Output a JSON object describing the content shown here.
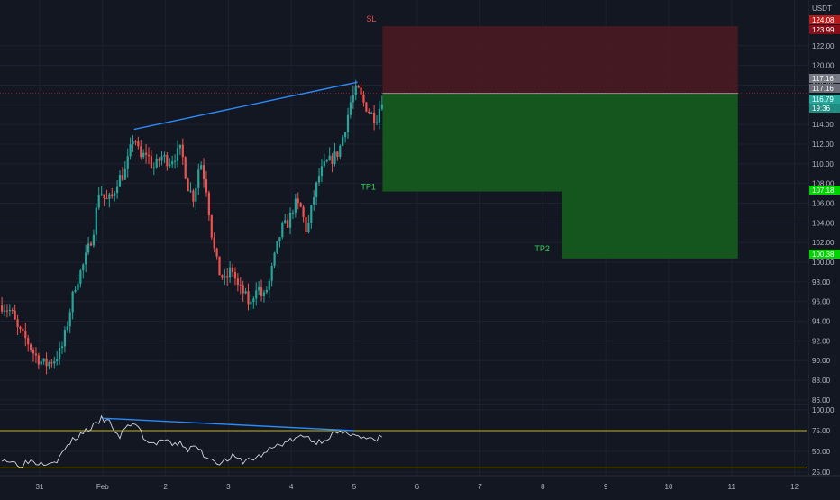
{
  "chart_data": {
    "type": "candlestick",
    "currency_label": "USDT",
    "y_ticks": [
      "122.00",
      "120.00",
      "118.00",
      "116.00",
      "114.00",
      "112.00",
      "110.00",
      "108.00",
      "106.00",
      "104.00",
      "102.00",
      "100.00",
      "98.00",
      "96.00",
      "94.00",
      "92.00",
      "90.00",
      "88.00",
      "86.00"
    ],
    "price_tags": [
      {
        "text": "124.08",
        "value": 124.08,
        "color": "#b71c1c"
      },
      {
        "text": "123.99",
        "value": 123.99,
        "color": "#880e1a"
      },
      {
        "text": "117.16",
        "value": 117.16,
        "color": "#787b86"
      },
      {
        "text": "117.16",
        "value": 117.16,
        "color": "#6a6d78"
      },
      {
        "text": "116.79",
        "value": 116.79,
        "color": "#26a69a"
      },
      {
        "text": "19:36",
        "value": 116.79,
        "color": "#1e8c81"
      },
      {
        "text": "107.18",
        "value": 107.18,
        "color": "#00d400"
      },
      {
        "text": "100.38",
        "value": 100.38,
        "color": "#00d400"
      }
    ],
    "x_ticks": [
      {
        "label": "31",
        "day": 0
      },
      {
        "label": "Feb",
        "day": 1
      },
      {
        "label": "2",
        "day": 2
      },
      {
        "label": "3",
        "day": 3
      },
      {
        "label": "4",
        "day": 4
      },
      {
        "label": "5",
        "day": 5
      },
      {
        "label": "6",
        "day": 6
      },
      {
        "label": "7",
        "day": 7
      },
      {
        "label": "8",
        "day": 8
      },
      {
        "label": "9",
        "day": 9
      },
      {
        "label": "10",
        "day": 10
      },
      {
        "label": "11",
        "day": 11
      },
      {
        "label": "12",
        "day": 12
      }
    ],
    "price_path": [
      [
        -0.6,
        95.6
      ],
      [
        -0.45,
        95.0
      ],
      [
        -0.35,
        93.2
      ],
      [
        -0.2,
        92.0
      ],
      [
        -0.1,
        90.8
      ],
      [
        0.0,
        90.0
      ],
      [
        0.1,
        89.6
      ],
      [
        0.25,
        90.2
      ],
      [
        0.35,
        91.2
      ],
      [
        0.45,
        94.0
      ],
      [
        0.55,
        97.4
      ],
      [
        0.7,
        99.8
      ],
      [
        0.85,
        103.0
      ],
      [
        0.95,
        107.5
      ],
      [
        1.05,
        106.2
      ],
      [
        1.15,
        106.6
      ],
      [
        1.25,
        108.5
      ],
      [
        1.35,
        109.0
      ],
      [
        1.5,
        113.0
      ],
      [
        1.6,
        110.5
      ],
      [
        1.7,
        111.2
      ],
      [
        1.8,
        109.5
      ],
      [
        1.95,
        110.8
      ],
      [
        2.05,
        110.2
      ],
      [
        2.15,
        110.8
      ],
      [
        2.25,
        111.5
      ],
      [
        2.35,
        107.8
      ],
      [
        2.45,
        106.5
      ],
      [
        2.55,
        110.5
      ],
      [
        2.65,
        107.5
      ],
      [
        2.75,
        102.0
      ],
      [
        2.85,
        99.0
      ],
      [
        2.95,
        98.0
      ],
      [
        3.05,
        99.5
      ],
      [
        3.15,
        97.5
      ],
      [
        3.25,
        96.8
      ],
      [
        3.35,
        95.5
      ],
      [
        3.45,
        97.8
      ],
      [
        3.55,
        96.2
      ],
      [
        3.65,
        98.0
      ],
      [
        3.75,
        101.0
      ],
      [
        3.85,
        103.5
      ],
      [
        3.95,
        104.0
      ],
      [
        4.05,
        106.0
      ],
      [
        4.15,
        105.5
      ],
      [
        4.25,
        103.0
      ],
      [
        4.35,
        106.5
      ],
      [
        4.45,
        109.0
      ],
      [
        4.55,
        110.0
      ],
      [
        4.65,
        110.5
      ],
      [
        4.75,
        111.2
      ],
      [
        4.85,
        113.5
      ],
      [
        4.95,
        116.5
      ],
      [
        5.05,
        117.6
      ],
      [
        5.15,
        116.2
      ],
      [
        5.25,
        115.2
      ],
      [
        5.35,
        114.6
      ],
      [
        5.45,
        116.8
      ]
    ],
    "trendline_price": {
      "start": {
        "day": 1.5,
        "price": 113.5
      },
      "end": {
        "day": 5.05,
        "price": 118.3
      },
      "color": "#2b8af7"
    },
    "rsi": {
      "ticks": [
        "100.00",
        "75.00",
        "50.00",
        "25.00"
      ],
      "upper_band": 75,
      "lower_band": 30,
      "band_color": "#c8b400",
      "path": [
        [
          -0.6,
          42
        ],
        [
          -0.45,
          37
        ],
        [
          -0.3,
          34
        ],
        [
          -0.15,
          39
        ],
        [
          0.0,
          36
        ],
        [
          0.15,
          38
        ],
        [
          0.3,
          40
        ],
        [
          0.45,
          58
        ],
        [
          0.6,
          68
        ],
        [
          0.75,
          76
        ],
        [
          0.9,
          82
        ],
        [
          1.0,
          90
        ],
        [
          1.15,
          82
        ],
        [
          1.25,
          65
        ],
        [
          1.35,
          76
        ],
        [
          1.5,
          86
        ],
        [
          1.6,
          74
        ],
        [
          1.7,
          62
        ],
        [
          1.8,
          58
        ],
        [
          1.95,
          64
        ],
        [
          2.1,
          57
        ],
        [
          2.25,
          60
        ],
        [
          2.35,
          52
        ],
        [
          2.5,
          56
        ],
        [
          2.6,
          46
        ],
        [
          2.75,
          40
        ],
        [
          2.9,
          36
        ],
        [
          3.05,
          44
        ],
        [
          3.2,
          38
        ],
        [
          3.35,
          40
        ],
        [
          3.5,
          44
        ],
        [
          3.65,
          52
        ],
        [
          3.8,
          58
        ],
        [
          3.95,
          62
        ],
        [
          4.1,
          66
        ],
        [
          4.25,
          68
        ],
        [
          4.4,
          60
        ],
        [
          4.55,
          66
        ],
        [
          4.7,
          72
        ],
        [
          4.85,
          70
        ],
        [
          5.0,
          74
        ],
        [
          5.1,
          66
        ],
        [
          5.25,
          64
        ],
        [
          5.35,
          62
        ],
        [
          5.45,
          70
        ]
      ],
      "trendline": {
        "start": {
          "day": 1.0,
          "value": 90
        },
        "end": {
          "day": 5.0,
          "value": 75
        },
        "color": "#2b8af7"
      }
    },
    "position": {
      "entry": 117.16,
      "stop": 123.99,
      "tp1": 107.18,
      "tp2": 100.38,
      "start_day": 5.45,
      "tp1_end_day": 8.3,
      "end_day": 11.1,
      "labels": {
        "sl": "SL",
        "tp1": "TP1",
        "tp2": "TP2"
      },
      "colors": {
        "sl_fill": "#4a1a22",
        "tp_fill": "#145a1e",
        "sl_text": "#e05050",
        "tp_text": "#2bd45a"
      }
    }
  }
}
